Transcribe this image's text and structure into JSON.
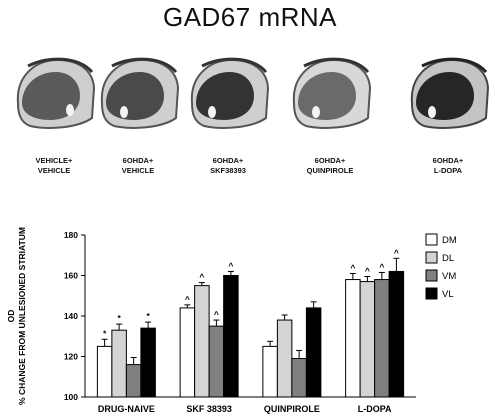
{
  "figure_title": "GAD67 mRNA",
  "panels": [
    {
      "line1": "VEHICLE+",
      "line2": "VEHICLE"
    },
    {
      "line1": "6OHDA+",
      "line2": "VEHICLE"
    },
    {
      "line1": "6OHDA+",
      "line2": "SKF38393"
    },
    {
      "line1": "6OHDA+",
      "line2": "QUINPIROLE"
    },
    {
      "line1": "6OHDA+",
      "line2": "L-DOPA"
    }
  ],
  "chart_data": {
    "type": "bar",
    "ylabel_line1": "OD",
    "ylabel_line2": "% CHANGE FROM UNLESIONED STRIATUM",
    "ylim": [
      100,
      180
    ],
    "yticks": [
      100,
      120,
      140,
      160,
      180
    ],
    "categories": [
      "DRUG-NAIVE",
      "SKF 38393",
      "QUINPIROLE",
      "L-DOPA"
    ],
    "series": [
      {
        "name": "DM",
        "color": "#ffffff",
        "values": [
          125,
          144,
          125,
          158
        ],
        "errors": [
          3.5,
          1.5,
          2.5,
          3
        ],
        "marks": [
          "*",
          "^",
          "",
          "^"
        ]
      },
      {
        "name": "DL",
        "color": "#d4d4d4",
        "values": [
          133,
          155,
          138,
          157
        ],
        "errors": [
          3,
          1.5,
          2.5,
          2.5
        ],
        "marks": [
          "*",
          "^",
          "",
          "^"
        ]
      },
      {
        "name": "VM",
        "color": "#808080",
        "values": [
          116,
          135,
          119,
          158
        ],
        "errors": [
          3.5,
          3,
          4,
          3.5
        ],
        "marks": [
          "",
          "^",
          "",
          "^"
        ]
      },
      {
        "name": "VL",
        "color": "#000000",
        "values": [
          134,
          160,
          144,
          162
        ],
        "errors": [
          3,
          2,
          3,
          6.5
        ],
        "marks": [
          "*",
          "^",
          "",
          "^"
        ]
      }
    ],
    "legend_position": "right"
  }
}
